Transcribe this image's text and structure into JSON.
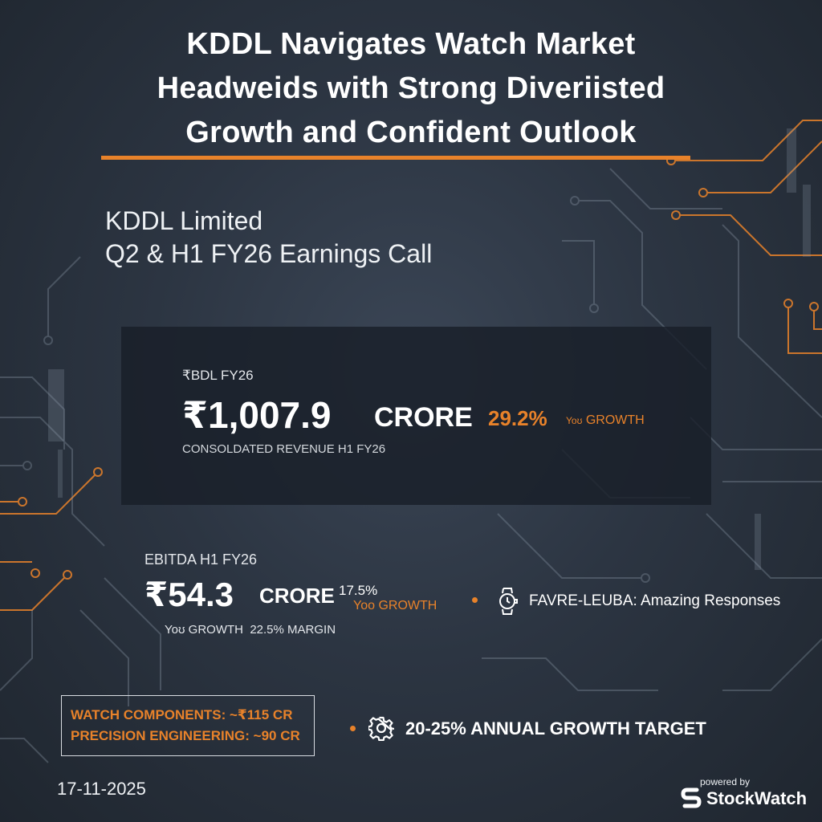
{
  "headline": {
    "line1": "KDDL Navigates Watch Market",
    "line2": "Headweids with Strong Diveriisted",
    "line3": "Growth and Confident Outlook"
  },
  "company": "KDDL Limited",
  "call_title": "Q2 & H1 FY26 Earnings Call",
  "revenue": {
    "label": "₹BDL FY26",
    "value": "₹1,007.9",
    "unit": "CRORE",
    "growth": "29.2%",
    "growth_yoy": "Yoʊ",
    "growth_word": "GROWTH",
    "description": "CONSOLDATED REVENUE H1 FY26"
  },
  "ebitda": {
    "label": "EBITDA H1 FY26",
    "value": "₹54.3",
    "unit": "CRORE",
    "growth": "17.5%",
    "growth_sub": "Yoo GROWTH",
    "growth_line": "Yoʊ GROWTH",
    "margin": "22.5% MARGIN"
  },
  "brand": {
    "name": "FAVRE-LEUBA:",
    "text": "Amazing Responses",
    "icon": "watch-icon"
  },
  "segments": {
    "watch_components": "WATCH COMPONENTS: ~₹115 CR",
    "precision_engineering": "PRECISION ENGINEERING: ~90 CR"
  },
  "growth_target": {
    "text": "20-25% ANNUAL GROWTH TARGET",
    "icon": "gear-icon"
  },
  "date": "17-11-2025",
  "footer": {
    "powered_by": "powered by",
    "brand": "StockWatch"
  },
  "colors": {
    "accent": "#e8822a",
    "background": "#2c3542",
    "card": "#181f28",
    "text": "#ffffff"
  }
}
